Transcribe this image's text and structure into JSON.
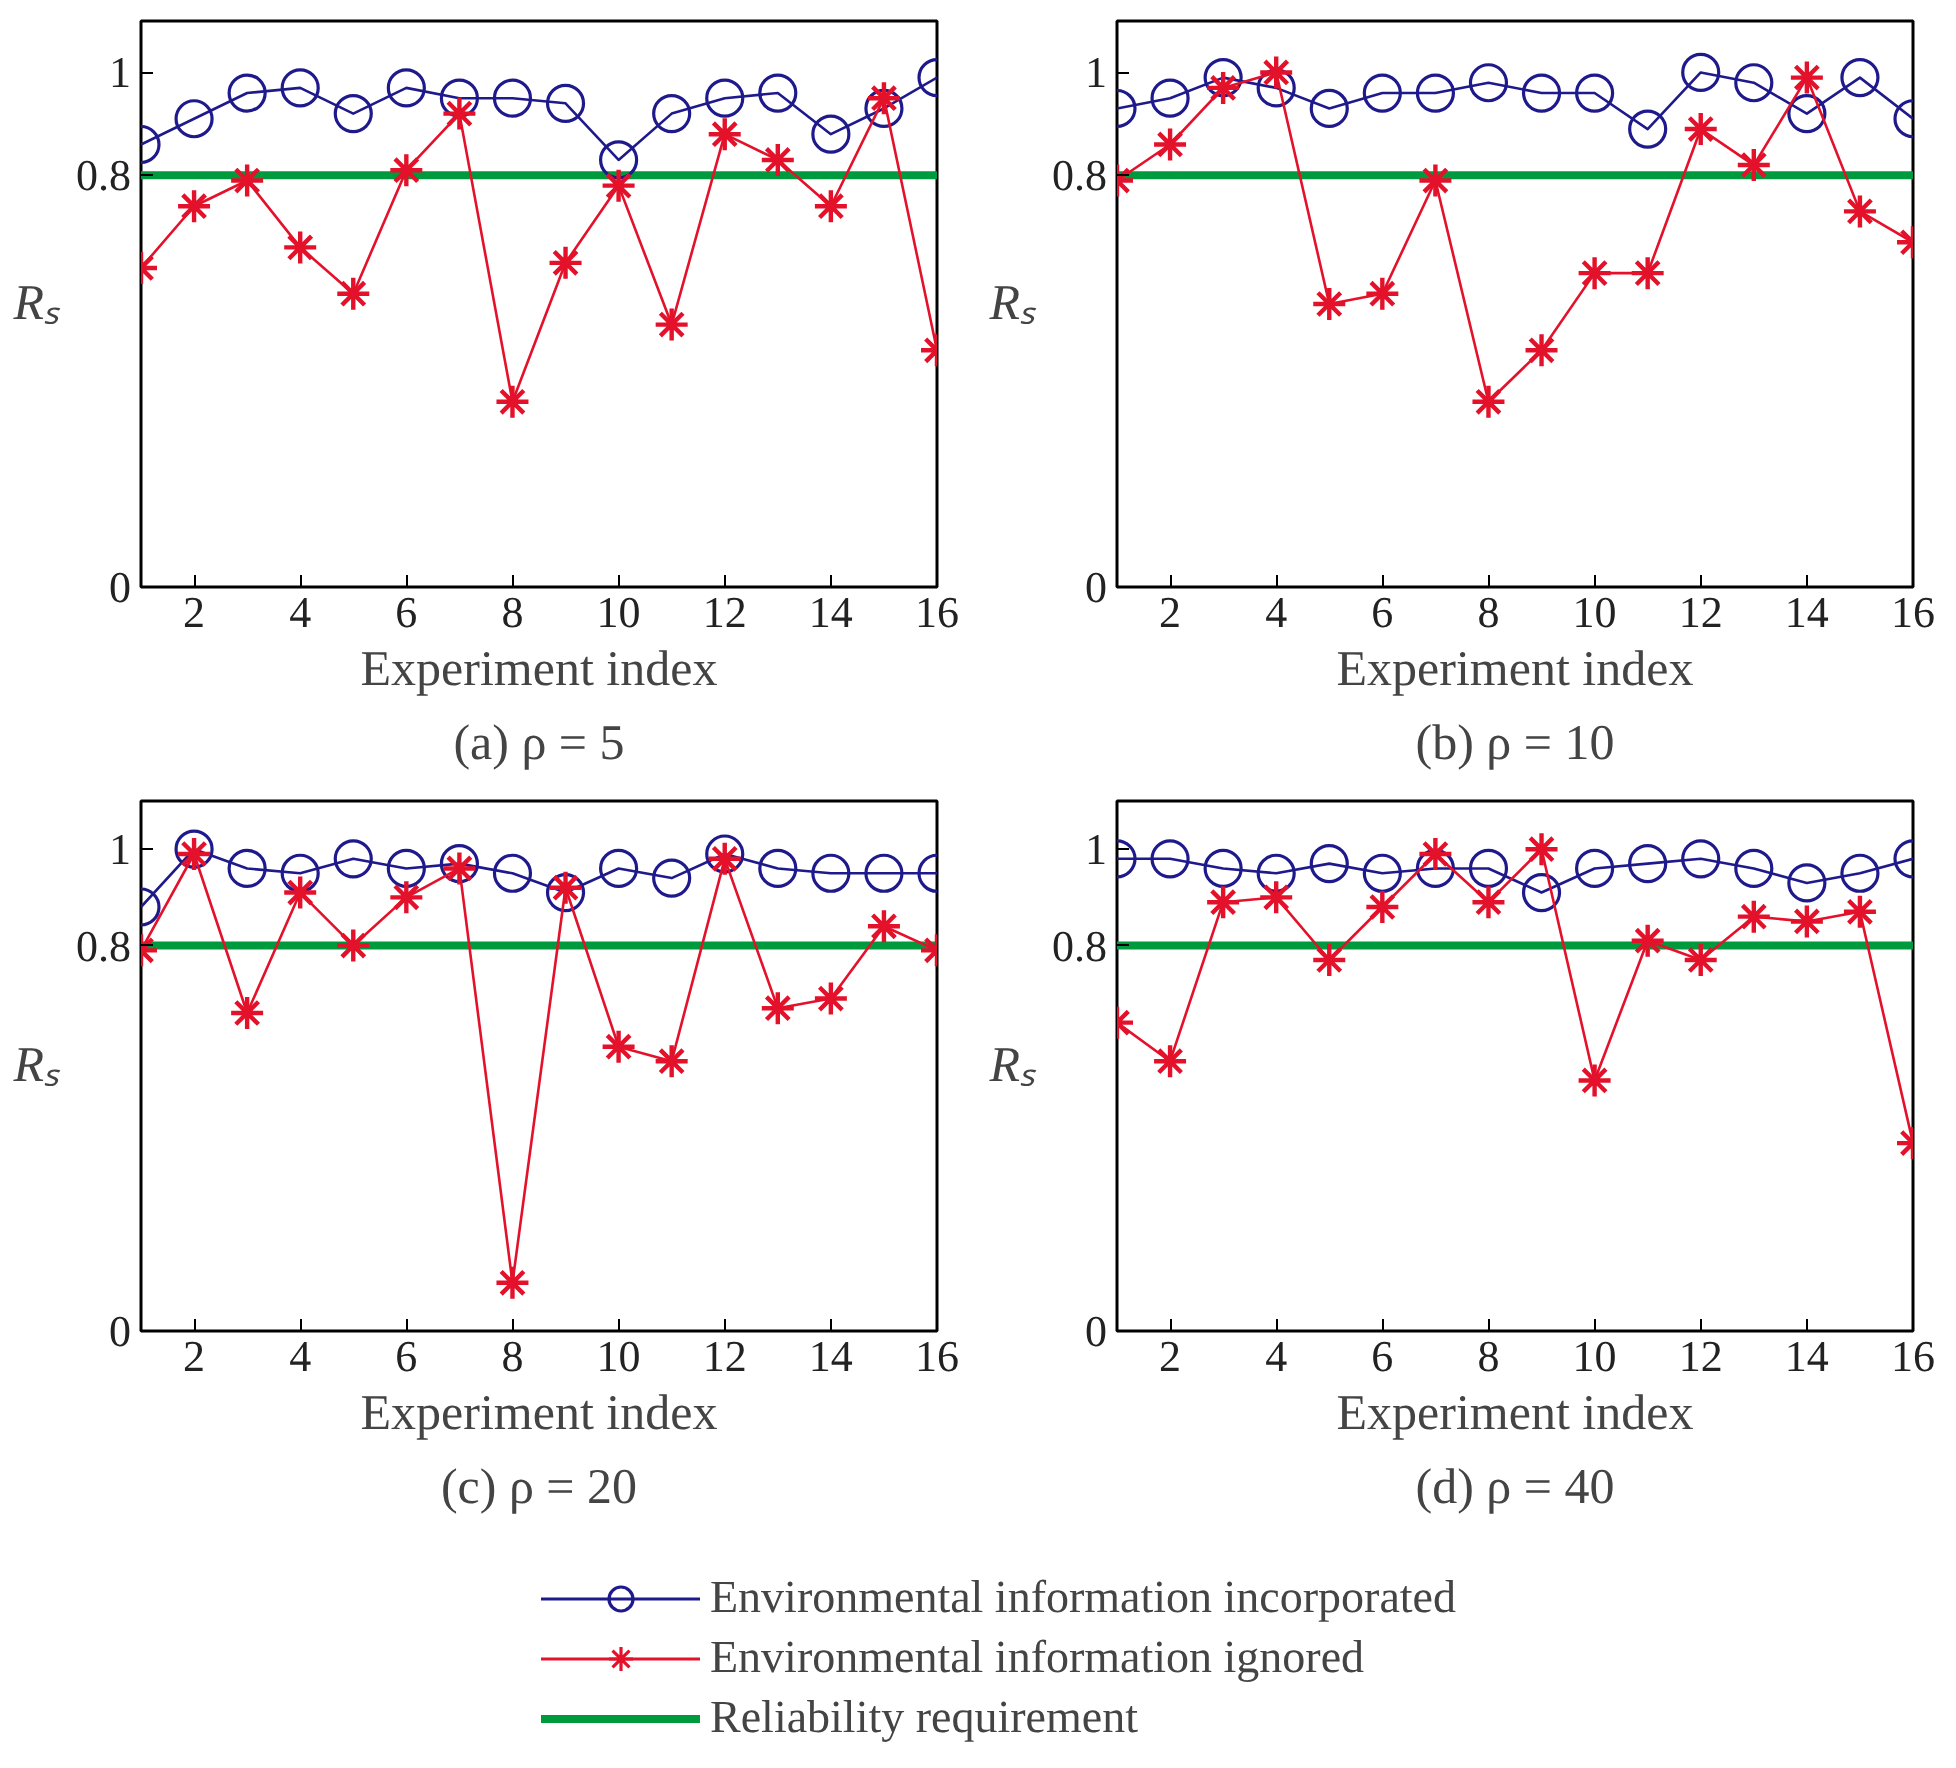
{
  "chart_data": [
    {
      "type": "line",
      "title": "(a) ρ = 5",
      "xlabel": "Experiment index",
      "ylabel": "Rₛ",
      "x": [
        1,
        2,
        3,
        4,
        5,
        6,
        7,
        8,
        9,
        10,
        11,
        12,
        13,
        14,
        15,
        16
      ],
      "xlim": [
        1,
        16
      ],
      "xticks": [
        2,
        4,
        6,
        8,
        10,
        12,
        14,
        16
      ],
      "ylim": [
        0,
        1.1
      ],
      "yticks": [
        0,
        0.8,
        1
      ],
      "grid": false,
      "series": [
        {
          "color": "#1f1a8c",
          "marker": "circle",
          "values": [
            0.86,
            0.91,
            0.96,
            0.97,
            0.92,
            0.97,
            0.95,
            0.95,
            0.94,
            0.83,
            0.92,
            0.95,
            0.96,
            0.88,
            0.93,
            0.99
          ]
        },
        {
          "color": "#e4112b",
          "marker": "cross",
          "values": [
            0.62,
            0.74,
            0.79,
            0.66,
            0.57,
            0.81,
            0.92,
            0.36,
            0.63,
            0.78,
            0.51,
            0.88,
            0.83,
            0.74,
            0.95,
            0.46
          ]
        }
      ],
      "ref_lines": [
        {
          "axis": "y",
          "value": 0.8,
          "color": "#009a3e"
        }
      ]
    },
    {
      "type": "line",
      "title": "(b) ρ = 10",
      "xlabel": "Experiment index",
      "ylabel": "Rₛ",
      "x": [
        1,
        2,
        3,
        4,
        5,
        6,
        7,
        8,
        9,
        10,
        11,
        12,
        13,
        14,
        15,
        16
      ],
      "xlim": [
        1,
        16
      ],
      "xticks": [
        2,
        4,
        6,
        8,
        10,
        12,
        14,
        16
      ],
      "ylim": [
        0,
        1.1
      ],
      "yticks": [
        0,
        0.8,
        1
      ],
      "grid": false,
      "series": [
        {
          "color": "#1f1a8c",
          "marker": "circle",
          "values": [
            0.93,
            0.95,
            0.99,
            0.97,
            0.93,
            0.96,
            0.96,
            0.98,
            0.96,
            0.96,
            0.89,
            1.0,
            0.98,
            0.92,
            0.99,
            0.91
          ]
        },
        {
          "color": "#e4112b",
          "marker": "cross",
          "values": [
            0.79,
            0.86,
            0.97,
            1.0,
            0.55,
            0.57,
            0.79,
            0.36,
            0.46,
            0.61,
            0.61,
            0.89,
            0.82,
            0.99,
            0.73,
            0.67
          ]
        }
      ],
      "ref_lines": [
        {
          "axis": "y",
          "value": 0.8,
          "color": "#009a3e"
        }
      ]
    },
    {
      "type": "line",
      "title": "(c) ρ = 20",
      "xlabel": "Experiment index",
      "ylabel": "Rₛ",
      "x": [
        1,
        2,
        3,
        4,
        5,
        6,
        7,
        8,
        9,
        10,
        11,
        12,
        13,
        14,
        15,
        16
      ],
      "xlim": [
        1,
        16
      ],
      "xticks": [
        2,
        4,
        6,
        8,
        10,
        12,
        14,
        16
      ],
      "ylim": [
        0,
        1.1
      ],
      "yticks": [
        0,
        0.8,
        1
      ],
      "grid": false,
      "series": [
        {
          "color": "#1f1a8c",
          "marker": "circle",
          "values": [
            0.88,
            1.0,
            0.96,
            0.95,
            0.98,
            0.96,
            0.97,
            0.95,
            0.91,
            0.96,
            0.94,
            0.99,
            0.96,
            0.95,
            0.95,
            0.95
          ]
        },
        {
          "color": "#e4112b",
          "marker": "cross",
          "values": [
            0.79,
            0.99,
            0.66,
            0.91,
            0.8,
            0.9,
            0.96,
            0.1,
            0.92,
            0.59,
            0.56,
            0.98,
            0.67,
            0.69,
            0.84,
            0.79
          ]
        }
      ],
      "ref_lines": [
        {
          "axis": "y",
          "value": 0.8,
          "color": "#009a3e"
        }
      ]
    },
    {
      "type": "line",
      "title": "(d) ρ = 40",
      "xlabel": "Experiment index",
      "ylabel": "Rₛ",
      "x": [
        1,
        2,
        3,
        4,
        5,
        6,
        7,
        8,
        9,
        10,
        11,
        12,
        13,
        14,
        15,
        16
      ],
      "xlim": [
        1,
        16
      ],
      "xticks": [
        2,
        4,
        6,
        8,
        10,
        12,
        14,
        16
      ],
      "ylim": [
        0,
        1.1
      ],
      "yticks": [
        0,
        0.8,
        1
      ],
      "grid": false,
      "legend": "bottom",
      "series": [
        {
          "name": "Environmental information incorporated",
          "color": "#1f1a8c",
          "marker": "circle",
          "values": [
            0.98,
            0.98,
            0.96,
            0.95,
            0.97,
            0.95,
            0.96,
            0.96,
            0.91,
            0.96,
            0.97,
            0.98,
            0.96,
            0.93,
            0.95,
            0.98
          ]
        },
        {
          "name": "Environmental information ignored",
          "color": "#e4112b",
          "marker": "cross",
          "values": [
            0.64,
            0.56,
            0.89,
            0.9,
            0.77,
            0.88,
            0.99,
            0.89,
            1.0,
            0.52,
            0.81,
            0.77,
            0.86,
            0.85,
            0.87,
            0.39
          ]
        }
      ],
      "ref_lines": [
        {
          "axis": "y",
          "value": 0.8,
          "label": "Reliability requirement",
          "color": "#009a3e"
        }
      ]
    }
  ]
}
